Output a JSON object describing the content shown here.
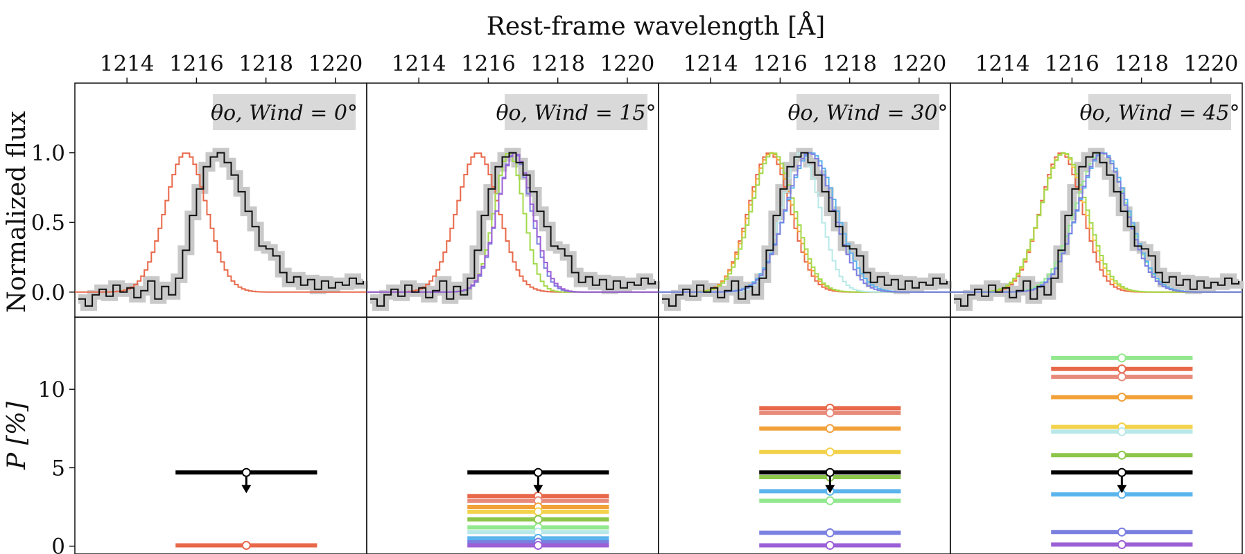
{
  "figure": {
    "top_axis_title": "Rest-frame wavelength [Å]",
    "flux_ylabel": "Normalized flux",
    "pol_ylabel": "P [%]"
  },
  "chart_data": [
    {
      "type": "line",
      "role": "spectra",
      "xlabel": "Rest-frame wavelength [Å]",
      "ylabel": "Normalized flux",
      "xlim": [
        1212.5,
        1220.9
      ],
      "ylim": [
        -0.18,
        1.5
      ],
      "xticks": [
        1214,
        1216,
        1218,
        1220
      ],
      "yticks": [
        0.0,
        0.5,
        1.0
      ],
      "ytick_labels": [
        "0.0",
        "0.5",
        "1.0"
      ],
      "observed": {
        "color": "#111111",
        "error_color": "#c9c9c9",
        "x": [
          1212.6,
          1212.8,
          1213.0,
          1213.2,
          1213.4,
          1213.6,
          1213.8,
          1214.0,
          1214.2,
          1214.4,
          1214.6,
          1214.8,
          1215.0,
          1215.2,
          1215.4,
          1215.6,
          1215.8,
          1216.0,
          1216.2,
          1216.4,
          1216.6,
          1216.8,
          1217.0,
          1217.2,
          1217.4,
          1217.6,
          1217.8,
          1218.0,
          1218.2,
          1218.4,
          1218.6,
          1218.8,
          1219.0,
          1219.2,
          1219.4,
          1219.6,
          1219.8,
          1220.0,
          1220.2,
          1220.4,
          1220.6,
          1220.8
        ],
        "y": [
          -0.05,
          -0.1,
          -0.02,
          0.02,
          -0.03,
          0.05,
          0.0,
          0.03,
          -0.04,
          0.01,
          0.08,
          -0.05,
          0.04,
          -0.02,
          0.1,
          0.3,
          0.55,
          0.74,
          0.9,
          0.97,
          1.0,
          0.93,
          0.84,
          0.72,
          0.58,
          0.47,
          0.33,
          0.31,
          0.26,
          0.14,
          0.07,
          0.11,
          0.05,
          0.09,
          0.02,
          0.08,
          0.03,
          0.07,
          0.05,
          0.1,
          0.06,
          0.08
        ]
      },
      "panels": [
        {
          "label": "θo, Wind = 0°",
          "models": [
            {
              "color": "#e8684a",
              "center": 1215.65,
              "width": 0.6
            }
          ]
        },
        {
          "label": "θo, Wind = 15°",
          "models": [
            {
              "color": "#e8684a",
              "center": 1215.65,
              "width": 0.6
            },
            {
              "color": "#a2d94a",
              "center": 1216.55,
              "width": 0.42
            },
            {
              "color": "#7a7fe0",
              "center": 1216.7,
              "width": 0.48
            },
            {
              "color": "#9b5fd6",
              "center": 1216.72,
              "width": 0.5
            }
          ]
        },
        {
          "label": "θo, Wind = 30°",
          "models": [
            {
              "color": "#e8684a",
              "center": 1215.65,
              "width": 0.6
            },
            {
              "color": "#f2a13a",
              "center": 1215.7,
              "width": 0.62
            },
            {
              "color": "#a2d94a",
              "center": 1215.75,
              "width": 0.62
            },
            {
              "color": "#b8e8e8",
              "center": 1216.55,
              "width": 0.55
            },
            {
              "color": "#5ab4ee",
              "center": 1216.85,
              "width": 0.72
            },
            {
              "color": "#7a7fe0",
              "center": 1216.8,
              "width": 0.68
            }
          ]
        },
        {
          "label": "θo, Wind = 45°",
          "models": [
            {
              "color": "#e8684a",
              "center": 1215.65,
              "width": 0.6
            },
            {
              "color": "#f2c744",
              "center": 1215.7,
              "width": 0.64
            },
            {
              "color": "#a2d94a",
              "center": 1215.72,
              "width": 0.66
            },
            {
              "color": "#93e88f",
              "center": 1216.8,
              "width": 0.74
            },
            {
              "color": "#5ab4ee",
              "center": 1216.85,
              "width": 0.72
            },
            {
              "color": "#7a7fe0",
              "center": 1216.82,
              "width": 0.7
            }
          ]
        }
      ]
    },
    {
      "type": "scatter",
      "role": "polarization",
      "ylabel": "P [%]",
      "ylim": [
        -0.5,
        14.6
      ],
      "yticks": [
        0,
        5,
        10
      ],
      "ytick_labels": [
        "0",
        "5",
        "10"
      ],
      "observed_upper_limit": {
        "value": 4.7,
        "color": "#000000"
      },
      "panels": [
        {
          "models": [
            {
              "value": 0.05,
              "color": "#e8684a"
            }
          ]
        },
        {
          "models": [
            {
              "value": 3.2,
              "color": "#e8684a"
            },
            {
              "value": 2.9,
              "color": "#e88a7a"
            },
            {
              "value": 2.5,
              "color": "#f2a13a"
            },
            {
              "value": 2.2,
              "color": "#f2d24a"
            },
            {
              "value": 1.7,
              "color": "#8cc64a"
            },
            {
              "value": 1.2,
              "color": "#93e88f"
            },
            {
              "value": 0.9,
              "color": "#b8e8e8"
            },
            {
              "value": 0.5,
              "color": "#5ab4ee"
            },
            {
              "value": 0.25,
              "color": "#7a7fe0"
            },
            {
              "value": 0.05,
              "color": "#9b5fd6"
            }
          ]
        },
        {
          "models": [
            {
              "value": 8.8,
              "color": "#e8684a"
            },
            {
              "value": 8.5,
              "color": "#e88a7a"
            },
            {
              "value": 7.5,
              "color": "#f2a13a"
            },
            {
              "value": 6.0,
              "color": "#f2d24a"
            },
            {
              "value": 4.4,
              "color": "#8cc64a"
            },
            {
              "value": 3.5,
              "color": "#5ab4ee"
            },
            {
              "value": 2.9,
              "color": "#93e88f"
            },
            {
              "value": 0.85,
              "color": "#7a7fe0"
            },
            {
              "value": 0.05,
              "color": "#9b5fd6"
            }
          ]
        },
        {
          "models": [
            {
              "value": 12.0,
              "color": "#93e88f"
            },
            {
              "value": 11.3,
              "color": "#e8684a"
            },
            {
              "value": 10.8,
              "color": "#e88a7a"
            },
            {
              "value": 9.5,
              "color": "#f2a13a"
            },
            {
              "value": 7.6,
              "color": "#f2d24a"
            },
            {
              "value": 7.3,
              "color": "#b8e8e8"
            },
            {
              "value": 5.8,
              "color": "#8cc64a"
            },
            {
              "value": 3.3,
              "color": "#5ab4ee"
            },
            {
              "value": 0.9,
              "color": "#7a7fe0"
            },
            {
              "value": 0.1,
              "color": "#9b5fd6"
            }
          ]
        }
      ]
    }
  ]
}
